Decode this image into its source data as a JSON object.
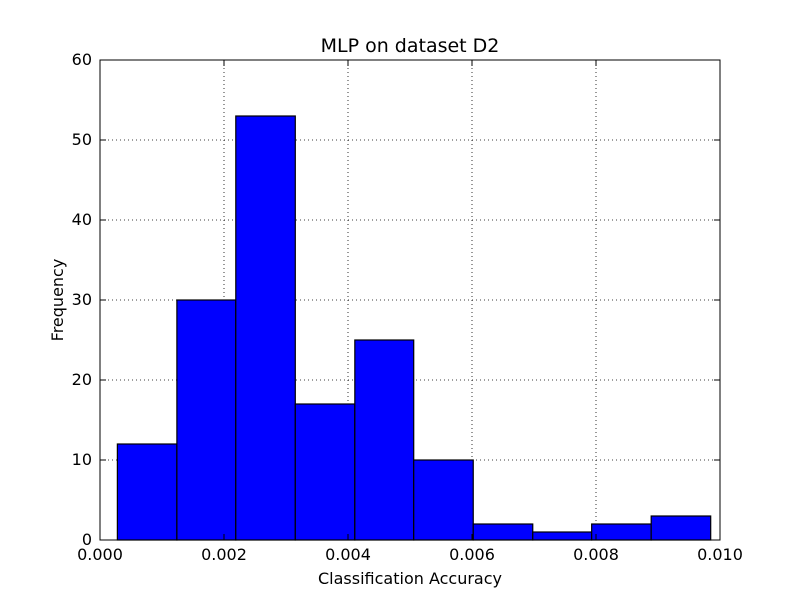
{
  "chart_data": {
    "type": "bar",
    "title": "MLP on dataset D2",
    "xlabel": "Classification Accuracy",
    "ylabel": "Frequency",
    "xlim": [
      0.0,
      0.01
    ],
    "ylim": [
      0,
      60
    ],
    "x_ticks": [
      "0.000",
      "0.002",
      "0.004",
      "0.006",
      "0.008",
      "0.010"
    ],
    "x_tick_values": [
      0.0,
      0.002,
      0.004,
      0.006,
      0.008,
      0.01
    ],
    "y_ticks": [
      "0",
      "10",
      "20",
      "30",
      "40",
      "50",
      "60"
    ],
    "y_tick_values": [
      0,
      10,
      20,
      30,
      40,
      50,
      60
    ],
    "bin_edges": [
      0.00028,
      0.00124,
      0.00219,
      0.00315,
      0.00411,
      0.00506,
      0.00602,
      0.00698,
      0.00793,
      0.00889,
      0.00985
    ],
    "values": [
      12,
      30,
      53,
      17,
      25,
      10,
      2,
      1,
      2,
      3
    ],
    "grid": true,
    "bar_color": "#0000ff",
    "edge_color": "#000000"
  }
}
